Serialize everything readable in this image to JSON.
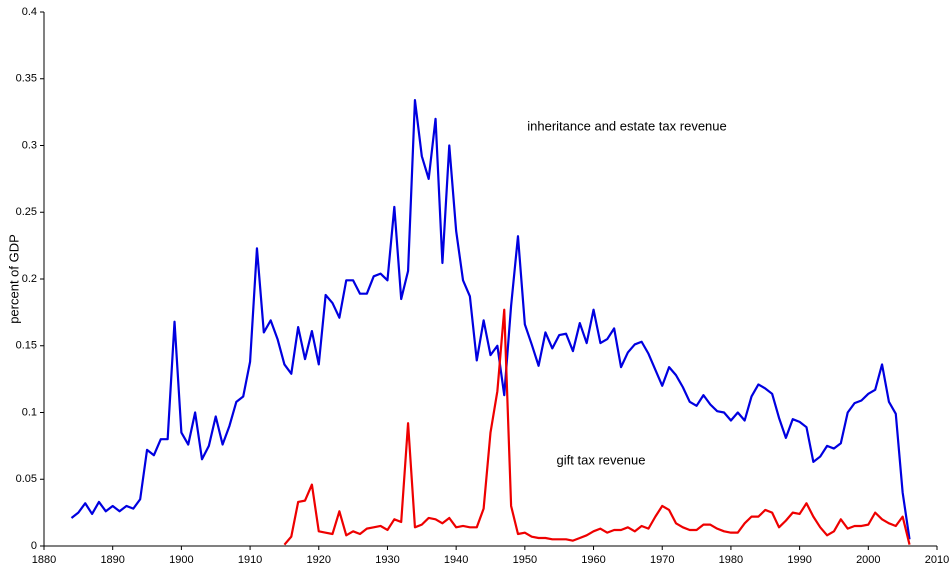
{
  "chart_data": {
    "type": "line",
    "ylabel": "percent of GDP",
    "x": [
      1884,
      1885,
      1886,
      1887,
      1888,
      1889,
      1890,
      1891,
      1892,
      1893,
      1894,
      1895,
      1896,
      1897,
      1898,
      1899,
      1900,
      1901,
      1902,
      1903,
      1904,
      1905,
      1906,
      1907,
      1908,
      1909,
      1910,
      1911,
      1912,
      1913,
      1914,
      1915,
      1916,
      1917,
      1918,
      1919,
      1920,
      1921,
      1922,
      1923,
      1924,
      1925,
      1926,
      1927,
      1928,
      1929,
      1930,
      1931,
      1932,
      1933,
      1934,
      1935,
      1936,
      1937,
      1938,
      1939,
      1940,
      1941,
      1942,
      1943,
      1944,
      1945,
      1946,
      1947,
      1948,
      1949,
      1950,
      1951,
      1952,
      1953,
      1954,
      1955,
      1956,
      1957,
      1958,
      1959,
      1960,
      1961,
      1962,
      1963,
      1964,
      1965,
      1966,
      1967,
      1968,
      1969,
      1970,
      1971,
      1972,
      1973,
      1974,
      1975,
      1976,
      1977,
      1978,
      1979,
      1980,
      1981,
      1982,
      1983,
      1984,
      1985,
      1986,
      1987,
      1988,
      1989,
      1990,
      1991,
      1992,
      1993,
      1994,
      1995,
      1996,
      1997,
      1998,
      1999,
      2000,
      2001,
      2002,
      2003,
      2004,
      2005,
      2006
    ],
    "series": [
      {
        "name": "inheritance and estate tax revenue",
        "color": "#0000e0",
        "values": [
          0.021,
          0.025,
          0.032,
          0.024,
          0.033,
          0.026,
          0.03,
          0.026,
          0.03,
          0.028,
          0.035,
          0.072,
          0.068,
          0.08,
          0.08,
          0.168,
          0.085,
          0.076,
          0.1,
          0.065,
          0.075,
          0.097,
          0.076,
          0.09,
          0.108,
          0.112,
          0.138,
          0.223,
          0.16,
          0.169,
          0.155,
          0.136,
          0.129,
          0.164,
          0.14,
          0.161,
          0.136,
          0.188,
          0.182,
          0.171,
          0.199,
          0.199,
          0.189,
          0.189,
          0.202,
          0.204,
          0.199,
          0.254,
          0.185,
          0.206,
          0.334,
          0.292,
          0.275,
          0.32,
          0.212,
          0.3,
          0.236,
          0.199,
          0.187,
          0.139,
          0.169,
          0.143,
          0.15,
          0.113,
          0.18,
          0.232,
          0.166,
          0.151,
          0.135,
          0.16,
          0.148,
          0.158,
          0.159,
          0.146,
          0.167,
          0.152,
          0.177,
          0.152,
          0.155,
          0.163,
          0.134,
          0.145,
          0.151,
          0.153,
          0.144,
          0.132,
          0.12,
          0.134,
          0.128,
          0.119,
          0.108,
          0.105,
          0.113,
          0.106,
          0.101,
          0.1,
          0.094,
          0.1,
          0.094,
          0.112,
          0.121,
          0.118,
          0.114,
          0.096,
          0.081,
          0.095,
          0.093,
          0.089,
          0.063,
          0.067,
          0.075,
          0.073,
          0.077,
          0.1,
          0.107,
          0.109,
          0.114,
          0.117,
          0.136,
          0.108,
          0.099,
          0.04,
          0.005
        ]
      },
      {
        "name": "gift tax revenue",
        "color": "#ee0000",
        "values": [
          null,
          null,
          null,
          null,
          null,
          null,
          null,
          null,
          null,
          null,
          null,
          null,
          null,
          null,
          null,
          null,
          null,
          null,
          null,
          null,
          null,
          null,
          null,
          null,
          null,
          null,
          null,
          null,
          null,
          null,
          null,
          0.001,
          0.007,
          0.033,
          0.034,
          0.046,
          0.011,
          0.01,
          0.009,
          0.026,
          0.008,
          0.011,
          0.009,
          0.013,
          0.014,
          0.015,
          0.012,
          0.02,
          0.018,
          0.092,
          0.014,
          0.016,
          0.021,
          0.02,
          0.017,
          0.021,
          0.014,
          0.015,
          0.014,
          0.014,
          0.028,
          0.085,
          0.116,
          0.177,
          0.03,
          0.009,
          0.01,
          0.007,
          0.006,
          0.006,
          0.005,
          0.005,
          0.005,
          0.004,
          0.006,
          0.008,
          0.011,
          0.013,
          0.01,
          0.012,
          0.012,
          0.014,
          0.011,
          0.015,
          0.013,
          0.022,
          0.03,
          0.027,
          0.017,
          0.014,
          0.012,
          0.012,
          0.016,
          0.016,
          0.013,
          0.011,
          0.01,
          0.01,
          0.017,
          0.022,
          0.022,
          0.027,
          0.025,
          0.014,
          0.019,
          0.025,
          0.024,
          0.032,
          0.022,
          0.014,
          0.008,
          0.011,
          0.02,
          0.013,
          0.015,
          0.015,
          0.016,
          0.025,
          0.02,
          0.017,
          0.015,
          0.022,
          0.001
        ]
      }
    ],
    "xlim": [
      1880,
      2010
    ],
    "xticks": [
      1880,
      1890,
      1900,
      1910,
      1920,
      1930,
      1940,
      1950,
      1960,
      1970,
      1980,
      1990,
      2000,
      2010
    ],
    "ylim": [
      0,
      0.4
    ],
    "yticks": [
      0,
      0.05,
      0.1,
      0.15,
      0.2,
      0.25,
      0.3,
      0.35,
      0.4
    ],
    "grid": false
  }
}
